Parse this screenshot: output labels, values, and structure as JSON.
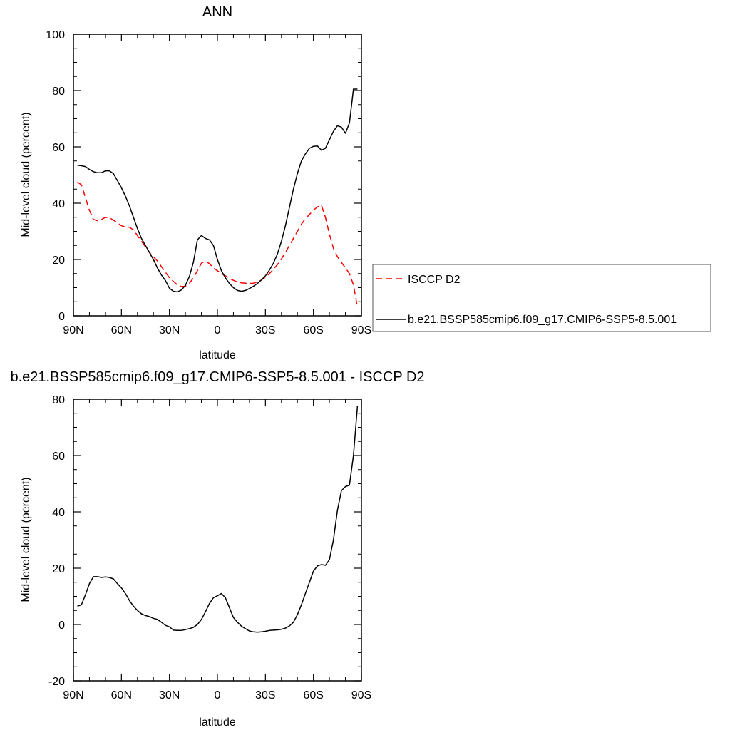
{
  "chart_data": [
    {
      "type": "line",
      "title": "ANN",
      "xlabel": "latitude",
      "ylabel": "Mid-level cloud (percent)",
      "xlim": [
        90,
        -90
      ],
      "ylim": [
        0,
        100
      ],
      "xticks": [
        90,
        60,
        30,
        0,
        -30,
        -60,
        -90
      ],
      "xtick_labels": [
        "90N",
        "60N",
        "30N",
        "0",
        "30S",
        "60S",
        "90S"
      ],
      "yticks": [
        0,
        20,
        40,
        60,
        80,
        100
      ],
      "ytick_labels": [
        "0",
        "20",
        "40",
        "60",
        "80",
        "100"
      ],
      "grid": false,
      "legend": "right",
      "colors": {
        "isccp": "#ff0000",
        "model": "#000000"
      },
      "series": [
        {
          "name": "ISCCP D2",
          "style": "dashed",
          "x": [
            87.5,
            85,
            82.5,
            80,
            77.5,
            75,
            72.5,
            70,
            67.5,
            65,
            62.5,
            60,
            57.5,
            55,
            52.5,
            50,
            47.5,
            45,
            42.5,
            40,
            37.5,
            35,
            32.5,
            30,
            27.5,
            25,
            22.5,
            20,
            17.5,
            15,
            12.5,
            10,
            7.5,
            5,
            2.5,
            0,
            -2.5,
            -5,
            -7.5,
            -10,
            -12.5,
            -15,
            -17.5,
            -20,
            -22.5,
            -25,
            -27.5,
            -30,
            -32.5,
            -35,
            -37.5,
            -40,
            -42.5,
            -45,
            -47.5,
            -50,
            -52.5,
            -55,
            -57.5,
            -60,
            -62.5,
            -65,
            -67.5,
            -70,
            -72.5,
            -75,
            -77.5,
            -80,
            -82.5,
            -85,
            -87.5
          ],
          "values": [
            47.5,
            46.5,
            42,
            37.5,
            34.2,
            33.8,
            34.2,
            35,
            34.8,
            34,
            33,
            32,
            31.5,
            31.5,
            30.5,
            28.5,
            26.5,
            24.5,
            22.5,
            21,
            19.5,
            17.5,
            15.5,
            13.5,
            12.2,
            11,
            10.4,
            10.5,
            11.5,
            13.5,
            16,
            18.7,
            19.5,
            18.5,
            17,
            16,
            15,
            14.2,
            13.3,
            12.6,
            12,
            11.7,
            11.6,
            11.5,
            11.6,
            12,
            12.7,
            13.7,
            15,
            16.5,
            18.2,
            20.2,
            22.5,
            25,
            27.5,
            30,
            32.5,
            34.5,
            36,
            37.5,
            38.7,
            39.3,
            35,
            29,
            24,
            21,
            19,
            17,
            15,
            11,
            3
          ]
        },
        {
          "name": "b.e21.BSSP585cmip6.f09_g17.CMIP6-SSP5-8.5.001",
          "style": "solid",
          "x": [
            87.5,
            85,
            82.5,
            80,
            77.5,
            75,
            72.5,
            70,
            67.5,
            65,
            62.5,
            60,
            57.5,
            55,
            52.5,
            50,
            47.5,
            45,
            42.5,
            40,
            37.5,
            35,
            32.5,
            30,
            27.5,
            25,
            22.5,
            20,
            17.5,
            15,
            12.5,
            10,
            7.5,
            5,
            2.5,
            0,
            -2.5,
            -5,
            -7.5,
            -10,
            -12.5,
            -15,
            -17.5,
            -20,
            -22.5,
            -25,
            -27.5,
            -30,
            -32.5,
            -35,
            -37.5,
            -40,
            -42.5,
            -45,
            -47.5,
            -50,
            -52.5,
            -55,
            -57.5,
            -60,
            -62.5,
            -65,
            -67.5,
            -70,
            -72.5,
            -75,
            -77.5,
            -80,
            -82.5,
            -85,
            -87.5
          ],
          "values": [
            53.5,
            53.3,
            53,
            52,
            51.2,
            50.8,
            50.8,
            51.5,
            51.5,
            50.5,
            48,
            45.5,
            42.5,
            39,
            35,
            31,
            27.5,
            25,
            22.5,
            20,
            17,
            14.5,
            12.5,
            9.8,
            8.7,
            8.5,
            9.2,
            10.8,
            14,
            19,
            27,
            28.5,
            27.5,
            27,
            25,
            20,
            16,
            13.5,
            11.5,
            10,
            9,
            8.7,
            9,
            9.7,
            10.5,
            11.5,
            12.7,
            14.2,
            16.2,
            18.7,
            22,
            26.5,
            32,
            38.5,
            45,
            50.5,
            55,
            57.5,
            59.5,
            60.2,
            60.3,
            58.8,
            59.5,
            62.5,
            65.5,
            67.5,
            67,
            64.8,
            68.5,
            80.5,
            80.5
          ]
        }
      ]
    },
    {
      "type": "line",
      "title": "b.e21.BSSP585cmip6.f09_g17.CMIP6-SSP5-8.5.001 - ISCCP D2",
      "xlabel": "latitude",
      "ylabel": "Mid-level cloud (percent)",
      "xlim": [
        90,
        -90
      ],
      "ylim": [
        -20,
        80
      ],
      "xticks": [
        90,
        60,
        30,
        0,
        -30,
        -60,
        -90
      ],
      "xtick_labels": [
        "90N",
        "60N",
        "30N",
        "0",
        "30S",
        "60S",
        "90S"
      ],
      "yticks": [
        -20,
        0,
        20,
        40,
        60,
        80
      ],
      "ytick_labels": [
        "-20",
        "0",
        "20",
        "40",
        "60",
        "80"
      ],
      "grid": false,
      "colors": {
        "line": "#000000"
      },
      "series": [
        {
          "style": "solid",
          "x": [
            87.5,
            85,
            82.5,
            80,
            77.5,
            75,
            72.5,
            70,
            67.5,
            65,
            62.5,
            60,
            57.5,
            55,
            52.5,
            50,
            47.5,
            45,
            42.5,
            40,
            37.5,
            35,
            32.5,
            30,
            27.5,
            25,
            22.5,
            20,
            17.5,
            15,
            12.5,
            10,
            7.5,
            5,
            2.5,
            0,
            -2.5,
            -5,
            -7.5,
            -10,
            -12.5,
            -15,
            -17.5,
            -20,
            -22.5,
            -25,
            -27.5,
            -30,
            -32.5,
            -35,
            -37.5,
            -40,
            -42.5,
            -45,
            -47.5,
            -50,
            -52.5,
            -55,
            -57.5,
            -60,
            -62.5,
            -65,
            -67.5,
            -70,
            -72.5,
            -75,
            -77.5,
            -80,
            -82.5,
            -85,
            -87.5
          ],
          "values": [
            6.5,
            7,
            10.5,
            14.5,
            17,
            17,
            16.7,
            16.9,
            16.7,
            16.2,
            14.5,
            13,
            11,
            8.5,
            6.5,
            5,
            3.8,
            3.2,
            2.8,
            2.2,
            1.8,
            0.8,
            -0.3,
            -0.8,
            -2,
            -2.1,
            -2.1,
            -1.8,
            -1.5,
            -1,
            0,
            1.8,
            4.5,
            7.5,
            9.5,
            10.2,
            11,
            9.5,
            6,
            2.5,
            0.8,
            -0.6,
            -1.5,
            -2.3,
            -2.6,
            -2.7,
            -2.6,
            -2.4,
            -2.1,
            -2,
            -1.9,
            -1.7,
            -1.3,
            -0.5,
            0.8,
            3.5,
            7,
            11,
            15,
            19,
            20.8,
            21.3,
            21,
            23,
            30,
            40.5,
            47.5,
            49,
            49.5,
            60,
            77.5
          ]
        }
      ]
    }
  ]
}
